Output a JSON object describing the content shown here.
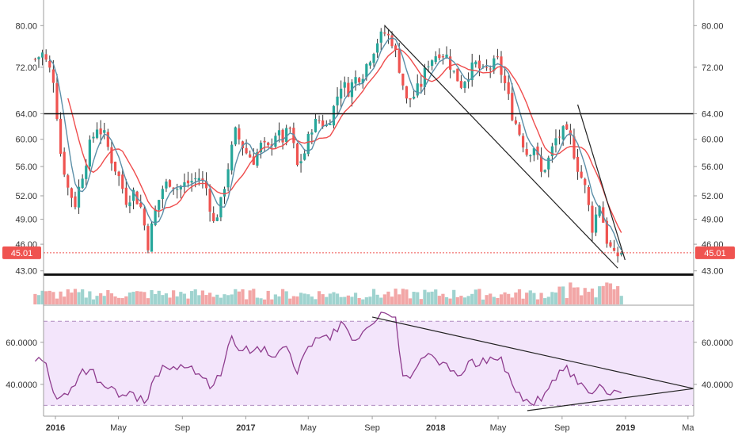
{
  "chart_data": [
    {
      "type": "candlestick",
      "title": "",
      "price_scale": "log",
      "ylim": [
        41.7,
        84
      ],
      "y_ticks": [
        "80.00",
        "72.00",
        "64.00",
        "60.00",
        "56.00",
        "52.00",
        "49.00",
        "46.00",
        "43.00"
      ],
      "y_tick_values": [
        80,
        72,
        64,
        60,
        56,
        52,
        49,
        46,
        43
      ],
      "last_price_label": "45.01",
      "last_price": 45.01,
      "x_ticks": [
        "2016",
        "May",
        "Sep",
        "2017",
        "May",
        "Sep",
        "2018",
        "May",
        "Sep",
        "2019",
        "Ma"
      ],
      "x_tick_dates": [
        "2016-01-01",
        "2016-05-01",
        "2016-09-01",
        "2017-01-01",
        "2017-05-01",
        "2017-09-01",
        "2018-01-01",
        "2018-05-01",
        "2018-09-01",
        "2019-01-01",
        "2019-05-01"
      ],
      "period": "weekly",
      "date_range": [
        "2015-11-23",
        "2018-12-24"
      ],
      "close_anchors": [
        [
          "2015-11-23",
          73.5
        ],
        [
          "2015-12-07",
          74.5
        ],
        [
          "2015-12-28",
          70.0
        ],
        [
          "2016-01-11",
          58.0
        ],
        [
          "2016-01-25",
          53.0
        ],
        [
          "2016-02-08",
          51.0
        ],
        [
          "2016-02-22",
          55.0
        ],
        [
          "2016-03-07",
          59.0
        ],
        [
          "2016-03-21",
          62.0
        ],
        [
          "2016-04-04",
          60.5
        ],
        [
          "2016-04-18",
          57.0
        ],
        [
          "2016-05-02",
          54.5
        ],
        [
          "2016-05-16",
          51.5
        ],
        [
          "2016-05-30",
          52.5
        ],
        [
          "2016-06-13",
          50.5
        ],
        [
          "2016-06-27",
          46.0
        ],
        [
          "2016-07-11",
          50.0
        ],
        [
          "2016-07-25",
          53.0
        ],
        [
          "2016-08-08",
          54.0
        ],
        [
          "2016-08-22",
          53.0
        ],
        [
          "2016-09-05",
          53.5
        ],
        [
          "2016-09-19",
          54.0
        ],
        [
          "2016-10-03",
          54.5
        ],
        [
          "2016-10-17",
          53.0
        ],
        [
          "2016-10-31",
          48.5
        ],
        [
          "2016-11-14",
          51.0
        ],
        [
          "2016-11-28",
          56.0
        ],
        [
          "2016-12-12",
          61.0
        ],
        [
          "2017-01-02",
          58.0
        ],
        [
          "2017-01-16",
          57.0
        ],
        [
          "2017-01-30",
          59.0
        ],
        [
          "2017-02-13",
          58.5
        ],
        [
          "2017-02-27",
          61.0
        ],
        [
          "2017-03-13",
          60.0
        ],
        [
          "2017-03-27",
          61.5
        ],
        [
          "2017-04-10",
          56.0
        ],
        [
          "2017-04-24",
          58.0
        ],
        [
          "2017-05-08",
          62.0
        ],
        [
          "2017-05-22",
          63.0
        ],
        [
          "2017-06-05",
          62.0
        ],
        [
          "2017-06-19",
          65.0
        ],
        [
          "2017-07-03",
          69.0
        ],
        [
          "2017-07-17",
          68.0
        ],
        [
          "2017-07-31",
          70.0
        ],
        [
          "2017-08-14",
          71.0
        ],
        [
          "2017-08-28",
          74.0
        ],
        [
          "2017-09-11",
          77.0
        ],
        [
          "2017-09-25",
          78.5
        ],
        [
          "2017-10-09",
          77.0
        ],
        [
          "2017-10-23",
          72.0
        ],
        [
          "2017-11-06",
          66.0
        ],
        [
          "2017-11-20",
          67.0
        ],
        [
          "2017-12-04",
          69.0
        ],
        [
          "2017-12-18",
          73.0
        ],
        [
          "2018-01-08",
          75.0
        ],
        [
          "2018-01-22",
          74.0
        ],
        [
          "2018-02-05",
          71.0
        ],
        [
          "2018-02-19",
          69.0
        ],
        [
          "2018-03-05",
          71.0
        ],
        [
          "2018-03-19",
          72.5
        ],
        [
          "2018-04-02",
          71.0
        ],
        [
          "2018-04-16",
          72.0
        ],
        [
          "2018-04-30",
          73.0
        ],
        [
          "2018-05-14",
          69.0
        ],
        [
          "2018-05-28",
          64.0
        ],
        [
          "2018-06-11",
          61.0
        ],
        [
          "2018-06-25",
          58.0
        ],
        [
          "2018-07-09",
          59.0
        ],
        [
          "2018-07-23",
          55.0
        ],
        [
          "2018-08-06",
          57.0
        ],
        [
          "2018-08-20",
          60.0
        ],
        [
          "2018-09-03",
          61.0
        ],
        [
          "2018-09-17",
          60.0
        ],
        [
          "2018-10-01",
          56.0
        ],
        [
          "2018-10-15",
          53.0
        ],
        [
          "2018-10-29",
          48.0
        ],
        [
          "2018-11-12",
          51.0
        ],
        [
          "2018-11-26",
          46.5
        ],
        [
          "2018-12-10",
          44.5
        ],
        [
          "2018-12-24",
          45.01
        ]
      ],
      "overlays": [
        {
          "kind": "moving-average",
          "length": 10,
          "color": "#ef4d4d"
        },
        {
          "kind": "moving-average",
          "length": 5,
          "color": "#5b8fa8"
        }
      ],
      "volume_colors": {
        "up": "#9fd3cf",
        "down": "#f2a6a6"
      },
      "candle_colors": {
        "up": "#26a69a",
        "down": "#ef5350"
      }
    },
    {
      "type": "line",
      "title": "",
      "ylim": [
        26,
        75
      ],
      "y_ticks": [
        "60.0000",
        "40.0000"
      ],
      "y_tick_values": [
        60,
        40
      ],
      "bands": [
        30,
        70
      ],
      "band_fill": "#f3e5fb",
      "line_color": "#8e3c8e",
      "points": [
        [
          "2015-11-23",
          51
        ],
        [
          "2015-12-14",
          50
        ],
        [
          "2016-01-04",
          33
        ],
        [
          "2016-01-25",
          35
        ],
        [
          "2016-02-15",
          44
        ],
        [
          "2016-03-07",
          47
        ],
        [
          "2016-03-28",
          41
        ],
        [
          "2016-04-18",
          39
        ],
        [
          "2016-05-09",
          35
        ],
        [
          "2016-05-30",
          36
        ],
        [
          "2016-06-20",
          31
        ],
        [
          "2016-07-11",
          44
        ],
        [
          "2016-08-01",
          48
        ],
        [
          "2016-08-22",
          47
        ],
        [
          "2016-09-12",
          48
        ],
        [
          "2016-10-03",
          45
        ],
        [
          "2016-10-24",
          38
        ],
        [
          "2016-11-14",
          44
        ],
        [
          "2016-12-05",
          63
        ],
        [
          "2016-12-26",
          56
        ],
        [
          "2017-01-16",
          56
        ],
        [
          "2017-02-06",
          58
        ],
        [
          "2017-02-27",
          53
        ],
        [
          "2017-03-20",
          58
        ],
        [
          "2017-04-10",
          45
        ],
        [
          "2017-05-01",
          58
        ],
        [
          "2017-05-22",
          62
        ],
        [
          "2017-06-12",
          61
        ],
        [
          "2017-07-03",
          70
        ],
        [
          "2017-07-24",
          61
        ],
        [
          "2017-08-14",
          65
        ],
        [
          "2017-09-04",
          69
        ],
        [
          "2017-09-25",
          74
        ],
        [
          "2017-10-16",
          72
        ],
        [
          "2017-10-30",
          44
        ],
        [
          "2017-11-20",
          46
        ],
        [
          "2017-12-11",
          53
        ],
        [
          "2018-01-01",
          52
        ],
        [
          "2018-01-22",
          50
        ],
        [
          "2018-02-12",
          44
        ],
        [
          "2018-03-05",
          51
        ],
        [
          "2018-03-26",
          49
        ],
        [
          "2018-04-16",
          53
        ],
        [
          "2018-05-07",
          53
        ],
        [
          "2018-05-28",
          40
        ],
        [
          "2018-06-18",
          32
        ],
        [
          "2018-07-09",
          30
        ],
        [
          "2018-07-30",
          36
        ],
        [
          "2018-08-20",
          42
        ],
        [
          "2018-09-10",
          49
        ],
        [
          "2018-10-01",
          40
        ],
        [
          "2018-10-22",
          36
        ],
        [
          "2018-11-12",
          40
        ],
        [
          "2018-12-03",
          35
        ],
        [
          "2018-12-24",
          36
        ]
      ]
    }
  ]
}
